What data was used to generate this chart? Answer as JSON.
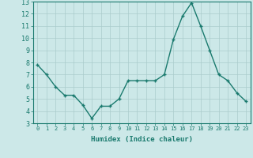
{
  "x": [
    0,
    1,
    2,
    3,
    4,
    5,
    6,
    7,
    8,
    9,
    10,
    11,
    12,
    13,
    14,
    15,
    16,
    17,
    18,
    19,
    20,
    21,
    22,
    23
  ],
  "y": [
    7.8,
    7.0,
    6.0,
    5.3,
    5.3,
    4.5,
    3.4,
    4.4,
    4.4,
    5.0,
    6.5,
    6.5,
    6.5,
    6.5,
    7.0,
    9.9,
    11.8,
    12.9,
    11.0,
    9.0,
    7.0,
    6.5,
    5.5,
    4.8
  ],
  "xlabel": "Humidex (Indice chaleur)",
  "ylim": [
    3,
    13
  ],
  "xlim": [
    -0.5,
    23.5
  ],
  "yticks": [
    3,
    4,
    5,
    6,
    7,
    8,
    9,
    10,
    11,
    12,
    13
  ],
  "xticks": [
    0,
    1,
    2,
    3,
    4,
    5,
    6,
    7,
    8,
    9,
    10,
    11,
    12,
    13,
    14,
    15,
    16,
    17,
    18,
    19,
    20,
    21,
    22,
    23
  ],
  "line_color": "#1a7a6e",
  "marker_color": "#1a7a6e",
  "bg_color": "#cce8e8",
  "grid_color": "#aacccc",
  "xlabel_color": "#1a7a6e",
  "tick_color": "#1a7a6e",
  "axis_color": "#1a7a6e",
  "xlabel_fontsize": 6.5,
  "tick_fontsize_x": 5.0,
  "tick_fontsize_y": 6.0,
  "linewidth": 1.0,
  "markersize": 3.0
}
